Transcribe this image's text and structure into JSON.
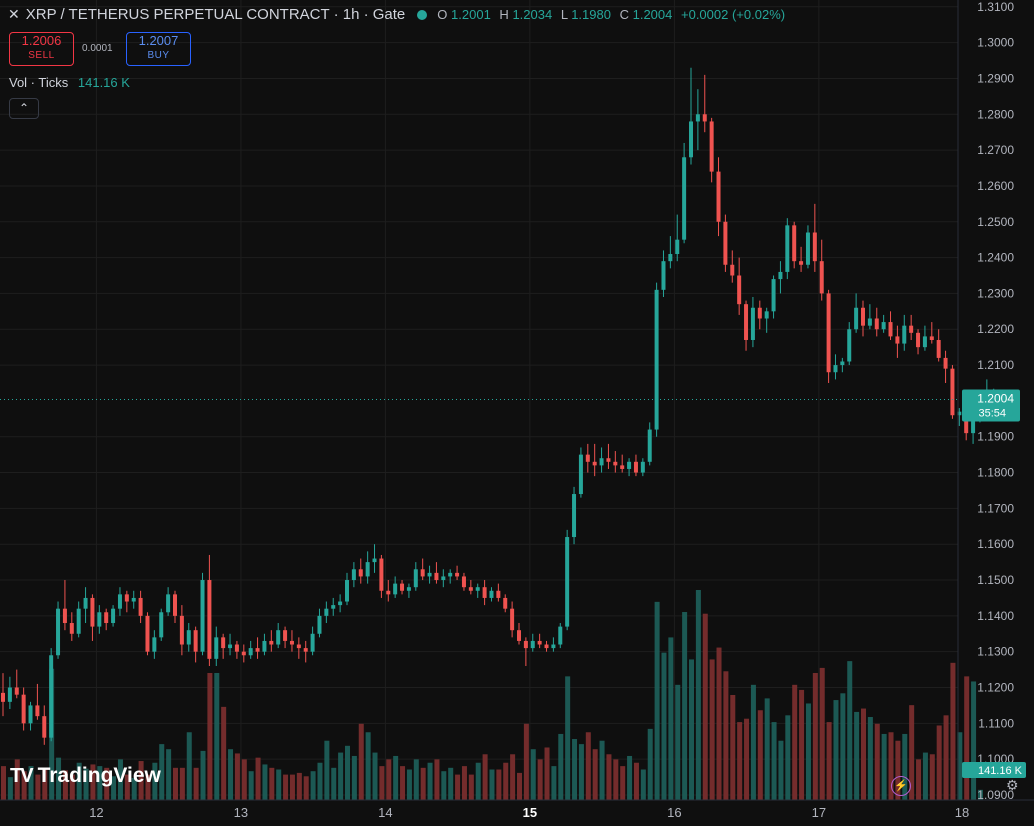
{
  "header": {
    "title": "XRP / TETHERUS PERPETUAL CONTRACT · 1h · Gate",
    "o_label": "O",
    "o_value": "1.2001",
    "h_label": "H",
    "h_value": "1.2034",
    "l_label": "L",
    "l_value": "1.1980",
    "c_label": "C",
    "c_value": "1.2004",
    "change": "+0.0002 (+0.02%)"
  },
  "trade": {
    "sell_price": "1.2006",
    "sell_label": "SELL",
    "spread": "0.0001",
    "buy_price": "1.2007",
    "buy_label": "BUY"
  },
  "volume_legend": {
    "label": "Vol · Ticks",
    "value": "141.16 K"
  },
  "branding": {
    "logo_text": "TradingView"
  },
  "colors": {
    "up": "#26a69a",
    "down": "#ef5350",
    "background": "#0f0f0f",
    "grid": "#1e1e1e",
    "text": "#b2b5be"
  },
  "icons": [
    "close-icon",
    "status-dot-icon",
    "collapse-chevron-icon",
    "tradingview-logo-icon",
    "lightning-icon",
    "settings-gear-icon"
  ],
  "chart_data": {
    "type": "candlestick",
    "title": "XRP / TETHERUS PERPETUAL CONTRACT · 1h · Gate",
    "y_axis_ticks": [
      "1.3100",
      "1.3000",
      "1.2900",
      "1.2800",
      "1.2700",
      "1.2600",
      "1.2500",
      "1.2400",
      "1.2300",
      "1.2200",
      "1.2100",
      "1.1900",
      "1.1800",
      "1.1700",
      "1.1600",
      "1.1500",
      "1.1400",
      "1.1300",
      "1.1200",
      "1.1100",
      "1.1000",
      "1.0900"
    ],
    "ylim": [
      1.0886,
      1.3119
    ],
    "x_axis_ticks": [
      "12",
      "13",
      "14",
      "15",
      "16",
      "17",
      "18"
    ],
    "last_price": "1.2004",
    "countdown": "35:54",
    "volume_last_label": "141.16 K",
    "grid": true,
    "candles": [
      [
        1.1185,
        1.124,
        1.112,
        1.116
      ],
      [
        1.116,
        1.123,
        1.114,
        1.12
      ],
      [
        1.12,
        1.125,
        1.117,
        1.118
      ],
      [
        1.118,
        1.12,
        1.108,
        1.11
      ],
      [
        1.11,
        1.116,
        1.108,
        1.115
      ],
      [
        1.115,
        1.121,
        1.111,
        1.112
      ],
      [
        1.112,
        1.115,
        1.104,
        1.106
      ],
      [
        1.106,
        1.131,
        1.105,
        1.129
      ],
      [
        1.129,
        1.144,
        1.128,
        1.142
      ],
      [
        1.142,
        1.15,
        1.136,
        1.138
      ],
      [
        1.138,
        1.141,
        1.133,
        1.135
      ],
      [
        1.135,
        1.144,
        1.134,
        1.142
      ],
      [
        1.142,
        1.148,
        1.138,
        1.145
      ],
      [
        1.145,
        1.146,
        1.133,
        1.137
      ],
      [
        1.137,
        1.143,
        1.135,
        1.141
      ],
      [
        1.141,
        1.142,
        1.136,
        1.138
      ],
      [
        1.138,
        1.143,
        1.137,
        1.142
      ],
      [
        1.142,
        1.148,
        1.14,
        1.146
      ],
      [
        1.146,
        1.147,
        1.141,
        1.144
      ],
      [
        1.144,
        1.147,
        1.142,
        1.145
      ],
      [
        1.145,
        1.147,
        1.138,
        1.14
      ],
      [
        1.14,
        1.141,
        1.129,
        1.13
      ],
      [
        1.13,
        1.136,
        1.128,
        1.134
      ],
      [
        1.134,
        1.142,
        1.133,
        1.141
      ],
      [
        1.141,
        1.148,
        1.14,
        1.146
      ],
      [
        1.146,
        1.147,
        1.138,
        1.14
      ],
      [
        1.14,
        1.143,
        1.129,
        1.132
      ],
      [
        1.132,
        1.138,
        1.13,
        1.136
      ],
      [
        1.136,
        1.137,
        1.127,
        1.13
      ],
      [
        1.13,
        1.152,
        1.129,
        1.15
      ],
      [
        1.15,
        1.157,
        1.126,
        1.128
      ],
      [
        1.128,
        1.137,
        1.126,
        1.134
      ],
      [
        1.134,
        1.135,
        1.128,
        1.131
      ],
      [
        1.131,
        1.135,
        1.129,
        1.132
      ],
      [
        1.132,
        1.133,
        1.128,
        1.13
      ],
      [
        1.13,
        1.132,
        1.127,
        1.129
      ],
      [
        1.129,
        1.133,
        1.128,
        1.131
      ],
      [
        1.131,
        1.134,
        1.128,
        1.13
      ],
      [
        1.13,
        1.135,
        1.129,
        1.133
      ],
      [
        1.133,
        1.136,
        1.13,
        1.132
      ],
      [
        1.132,
        1.138,
        1.131,
        1.136
      ],
      [
        1.136,
        1.137,
        1.131,
        1.133
      ],
      [
        1.133,
        1.136,
        1.13,
        1.132
      ],
      [
        1.132,
        1.134,
        1.128,
        1.131
      ],
      [
        1.131,
        1.133,
        1.127,
        1.13
      ],
      [
        1.13,
        1.137,
        1.129,
        1.135
      ],
      [
        1.135,
        1.142,
        1.134,
        1.14
      ],
      [
        1.14,
        1.144,
        1.138,
        1.142
      ],
      [
        1.142,
        1.145,
        1.14,
        1.143
      ],
      [
        1.143,
        1.146,
        1.141,
        1.144
      ],
      [
        1.144,
        1.152,
        1.143,
        1.15
      ],
      [
        1.15,
        1.155,
        1.148,
        1.153
      ],
      [
        1.153,
        1.156,
        1.149,
        1.151
      ],
      [
        1.151,
        1.158,
        1.149,
        1.155
      ],
      [
        1.155,
        1.16,
        1.152,
        1.156
      ],
      [
        1.156,
        1.157,
        1.145,
        1.147
      ],
      [
        1.147,
        1.15,
        1.144,
        1.146
      ],
      [
        1.146,
        1.151,
        1.145,
        1.149
      ],
      [
        1.149,
        1.15,
        1.146,
        1.147
      ],
      [
        1.147,
        1.149,
        1.145,
        1.148
      ],
      [
        1.148,
        1.155,
        1.147,
        1.153
      ],
      [
        1.153,
        1.156,
        1.15,
        1.151
      ],
      [
        1.151,
        1.154,
        1.149,
        1.152
      ],
      [
        1.152,
        1.155,
        1.149,
        1.15
      ],
      [
        1.15,
        1.153,
        1.148,
        1.151
      ],
      [
        1.151,
        1.153,
        1.149,
        1.152
      ],
      [
        1.152,
        1.154,
        1.15,
        1.151
      ],
      [
        1.151,
        1.152,
        1.147,
        1.148
      ],
      [
        1.148,
        1.15,
        1.146,
        1.147
      ],
      [
        1.147,
        1.149,
        1.145,
        1.148
      ],
      [
        1.148,
        1.15,
        1.143,
        1.145
      ],
      [
        1.145,
        1.148,
        1.144,
        1.147
      ],
      [
        1.147,
        1.149,
        1.144,
        1.145
      ],
      [
        1.145,
        1.146,
        1.141,
        1.142
      ],
      [
        1.142,
        1.144,
        1.134,
        1.136
      ],
      [
        1.136,
        1.138,
        1.132,
        1.133
      ],
      [
        1.133,
        1.134,
        1.126,
        1.131
      ],
      [
        1.131,
        1.135,
        1.13,
        1.133
      ],
      [
        1.133,
        1.135,
        1.131,
        1.132
      ],
      [
        1.132,
        1.133,
        1.13,
        1.131
      ],
      [
        1.131,
        1.134,
        1.13,
        1.132
      ],
      [
        1.132,
        1.138,
        1.131,
        1.137
      ],
      [
        1.137,
        1.164,
        1.136,
        1.162
      ],
      [
        1.162,
        1.176,
        1.16,
        1.174
      ],
      [
        1.174,
        1.187,
        1.173,
        1.185
      ],
      [
        1.185,
        1.188,
        1.18,
        1.183
      ],
      [
        1.183,
        1.188,
        1.179,
        1.182
      ],
      [
        1.182,
        1.187,
        1.18,
        1.184
      ],
      [
        1.184,
        1.188,
        1.181,
        1.183
      ],
      [
        1.183,
        1.186,
        1.18,
        1.182
      ],
      [
        1.182,
        1.185,
        1.18,
        1.181
      ],
      [
        1.181,
        1.184,
        1.179,
        1.183
      ],
      [
        1.183,
        1.185,
        1.179,
        1.18
      ],
      [
        1.18,
        1.184,
        1.179,
        1.183
      ],
      [
        1.183,
        1.194,
        1.182,
        1.192
      ],
      [
        1.192,
        1.233,
        1.19,
        1.231
      ],
      [
        1.231,
        1.242,
        1.229,
        1.239
      ],
      [
        1.239,
        1.246,
        1.237,
        1.241
      ],
      [
        1.241,
        1.252,
        1.239,
        1.245
      ],
      [
        1.245,
        1.272,
        1.244,
        1.268
      ],
      [
        1.268,
        1.293,
        1.266,
        1.278
      ],
      [
        1.278,
        1.287,
        1.27,
        1.28
      ],
      [
        1.28,
        1.291,
        1.275,
        1.278
      ],
      [
        1.278,
        1.279,
        1.261,
        1.264
      ],
      [
        1.264,
        1.268,
        1.246,
        1.25
      ],
      [
        1.25,
        1.252,
        1.236,
        1.238
      ],
      [
        1.238,
        1.242,
        1.233,
        1.235
      ],
      [
        1.235,
        1.24,
        1.224,
        1.227
      ],
      [
        1.227,
        1.228,
        1.214,
        1.217
      ],
      [
        1.217,
        1.229,
        1.215,
        1.226
      ],
      [
        1.226,
        1.228,
        1.22,
        1.223
      ],
      [
        1.223,
        1.226,
        1.219,
        1.225
      ],
      [
        1.225,
        1.235,
        1.223,
        1.234
      ],
      [
        1.234,
        1.239,
        1.23,
        1.236
      ],
      [
        1.236,
        1.251,
        1.234,
        1.249
      ],
      [
        1.249,
        1.25,
        1.237,
        1.239
      ],
      [
        1.239,
        1.243,
        1.236,
        1.238
      ],
      [
        1.238,
        1.249,
        1.237,
        1.247
      ],
      [
        1.247,
        1.255,
        1.236,
        1.239
      ],
      [
        1.239,
        1.245,
        1.228,
        1.23
      ],
      [
        1.23,
        1.231,
        1.205,
        1.208
      ],
      [
        1.208,
        1.213,
        1.206,
        1.21
      ],
      [
        1.21,
        1.212,
        1.208,
        1.211
      ],
      [
        1.211,
        1.222,
        1.21,
        1.22
      ],
      [
        1.22,
        1.23,
        1.219,
        1.226
      ],
      [
        1.226,
        1.228,
        1.218,
        1.221
      ],
      [
        1.221,
        1.227,
        1.22,
        1.223
      ],
      [
        1.223,
        1.226,
        1.218,
        1.22
      ],
      [
        1.22,
        1.224,
        1.219,
        1.222
      ],
      [
        1.222,
        1.225,
        1.217,
        1.218
      ],
      [
        1.218,
        1.221,
        1.212,
        1.216
      ],
      [
        1.216,
        1.224,
        1.214,
        1.221
      ],
      [
        1.221,
        1.224,
        1.217,
        1.219
      ],
      [
        1.219,
        1.22,
        1.213,
        1.215
      ],
      [
        1.215,
        1.221,
        1.214,
        1.218
      ],
      [
        1.218,
        1.222,
        1.216,
        1.217
      ],
      [
        1.217,
        1.22,
        1.211,
        1.212
      ],
      [
        1.212,
        1.214,
        1.205,
        1.209
      ],
      [
        1.209,
        1.21,
        1.195,
        1.196
      ],
      [
        1.196,
        1.198,
        1.193,
        1.197
      ],
      [
        1.197,
        1.199,
        1.189,
        1.191
      ],
      [
        1.191,
        1.198,
        1.188,
        1.196
      ],
      [
        1.196,
        1.2,
        1.194,
        1.199
      ],
      [
        1.199,
        1.206,
        1.197,
        1.2
      ],
      [
        1.2001,
        1.2034,
        1.198,
        1.2004
      ]
    ],
    "volume": [
      40,
      27,
      48,
      34,
      40,
      30,
      38,
      155,
      50,
      35,
      30,
      44,
      37,
      42,
      40,
      38,
      28,
      48,
      30,
      26,
      46,
      30,
      44,
      66,
      60,
      38,
      38,
      80,
      38,
      58,
      150,
      150,
      110,
      60,
      55,
      48,
      34,
      50,
      42,
      38,
      36,
      30,
      30,
      32,
      28,
      34,
      44,
      70,
      38,
      56,
      64,
      52,
      90,
      80,
      56,
      40,
      48,
      52,
      40,
      36,
      48,
      38,
      44,
      48,
      34,
      38,
      30,
      40,
      30,
      44,
      54,
      36,
      36,
      44,
      54,
      32,
      90,
      60,
      48,
      62,
      40,
      78,
      146,
      72,
      66,
      80,
      60,
      70,
      54,
      48,
      40,
      52,
      44,
      36,
      84,
      234,
      174,
      192,
      136,
      222,
      166,
      248,
      220,
      166,
      180,
      152,
      124,
      92,
      96,
      136,
      106,
      120,
      92,
      70,
      100,
      136,
      130,
      114,
      150,
      156,
      92,
      118,
      126,
      164,
      104,
      108,
      98,
      90,
      78,
      80,
      70,
      78,
      112,
      48,
      56,
      54,
      88,
      100,
      162,
      80,
      146,
      140,
      12
    ]
  }
}
